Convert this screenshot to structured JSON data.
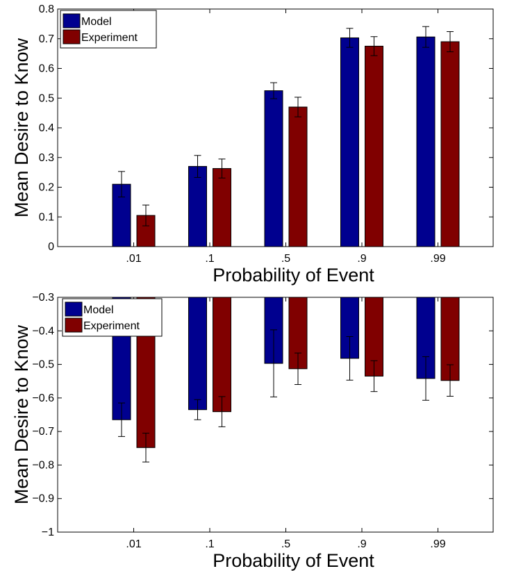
{
  "chart_data": [
    {
      "type": "bar",
      "categories": [
        ".01",
        ".1",
        ".5",
        ".9",
        ".99"
      ],
      "series": [
        {
          "name": "Model",
          "color": "#00008F",
          "values": [
            0.21,
            0.27,
            0.525,
            0.703,
            0.706
          ],
          "errors": [
            0.043,
            0.037,
            0.027,
            0.032,
            0.035
          ]
        },
        {
          "name": "Experiment",
          "color": "#800000",
          "values": [
            0.105,
            0.263,
            0.47,
            0.675,
            0.69
          ],
          "errors": [
            0.035,
            0.032,
            0.033,
            0.032,
            0.034
          ]
        }
      ],
      "xlabel": "Probability of Event",
      "ylabel": "Mean Desire to Know",
      "ylim": [
        0,
        0.8
      ],
      "yticks": [
        0,
        0.1,
        0.2,
        0.3,
        0.4,
        0.5,
        0.6,
        0.7,
        0.8
      ],
      "yticklabels": [
        "0",
        "0.1",
        "0.2",
        "0.3",
        "0.4",
        "0.5",
        "0.6",
        "0.7",
        "0.8"
      ],
      "legend_position": "top-left",
      "grid": false
    },
    {
      "type": "bar",
      "categories": [
        ".01",
        ".1",
        ".5",
        ".9",
        ".99"
      ],
      "series": [
        {
          "name": "Model",
          "color": "#00008F",
          "values": [
            -0.665,
            -0.635,
            -0.497,
            -0.482,
            -0.542
          ],
          "errors": [
            0.05,
            0.03,
            0.1,
            0.065,
            0.065
          ]
        },
        {
          "name": "Experiment",
          "color": "#800000",
          "values": [
            -0.748,
            -0.641,
            -0.513,
            -0.535,
            -0.548
          ],
          "errors": [
            0.043,
            0.045,
            0.047,
            0.046,
            0.047
          ]
        }
      ],
      "xlabel": "Probability of Event",
      "ylabel": "Mean Desire to Know",
      "ylim": [
        -1,
        -0.3
      ],
      "yticks": [
        -1,
        -0.9,
        -0.8,
        -0.7,
        -0.6,
        -0.5,
        -0.4,
        -0.3
      ],
      "yticklabels": [
        "−1",
        "−0.9",
        "−0.8",
        "−0.7",
        "−0.6",
        "−0.5",
        "−0.4",
        "−0.3"
      ],
      "legend_position": "top-left",
      "grid": false
    }
  ]
}
